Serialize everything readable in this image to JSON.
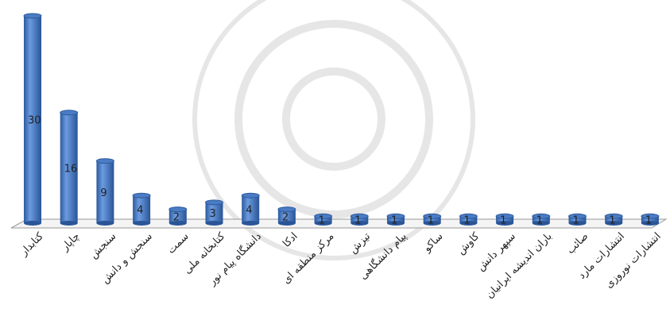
{
  "chart_data": {
    "type": "bar",
    "categories": [
      "کتابدار",
      "چاپار",
      "سنجش",
      "سنجش و دانش",
      "سمت",
      "کتابخانه ملی",
      "دانشگاه پیام نور",
      "ادکا",
      "مرکز منطقه ای",
      "تیزش",
      "پیام دانشگاهی",
      "ساکو",
      "کاوش",
      "سپهر دانش",
      "باران اندیشه ایرانیان",
      "صائب",
      "انتشارات مارد",
      "انتشارات نوروزی"
    ],
    "values": [
      30,
      16,
      9,
      4,
      2,
      3,
      4,
      2,
      1,
      1,
      1,
      1,
      1,
      1,
      1,
      1,
      1,
      1
    ],
    "color": "#4a7cc4"
  }
}
